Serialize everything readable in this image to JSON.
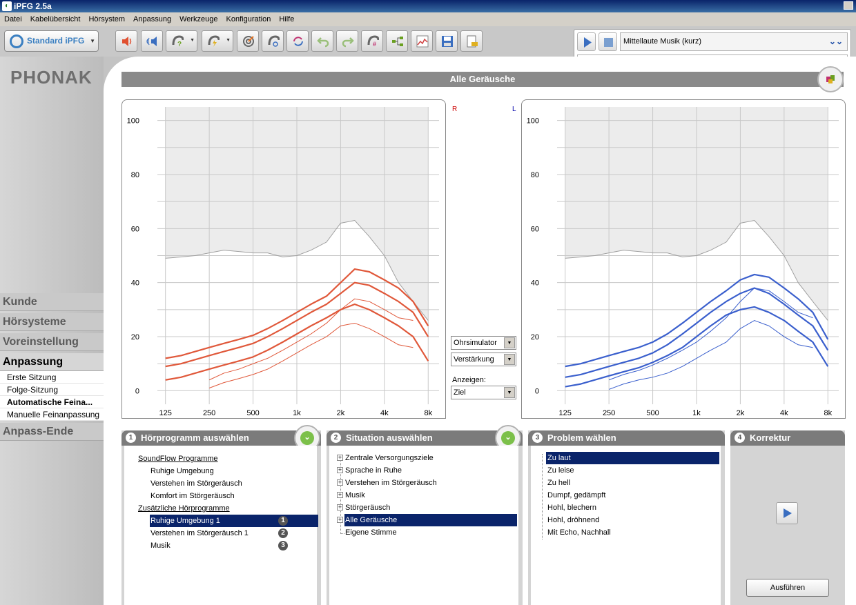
{
  "window": {
    "title": "iPFG 2.5a"
  },
  "menu": [
    "Datei",
    "Kabelübersicht",
    "Hörsystem",
    "Anpassung",
    "Werkzeuge",
    "Konfiguration",
    "Hilfe"
  ],
  "toolbar": {
    "profile_label": "Standard iPFG",
    "buttons": [
      "speaker-icon",
      "feedback-icon",
      "question-ear-icon",
      "lightning-ear-icon",
      "target-icon",
      "ear-refresh-icon",
      "cycle-icon",
      "undo-icon",
      "redo-icon",
      "ear-grid-icon",
      "tree-icon",
      "graph-icon",
      "save-icon",
      "device-icon"
    ]
  },
  "player": {
    "track": "Mittellaute Musik (kurz)"
  },
  "brand": {
    "logo": "PHONAK"
  },
  "nav": {
    "tabs": [
      "Kunde",
      "Hörsysteme",
      "Voreinstellung",
      "Anpassung",
      "Anpass-Ende"
    ],
    "subitems": [
      "Erste Sitzung",
      "Folge-Sitzung",
      "Automatische Feina...",
      "Manuelle Feinanpassung"
    ]
  },
  "section": {
    "title": "Alle Geräusche"
  },
  "charts": {
    "right_label": "R",
    "left_label": "L",
    "y_ticks": [
      "100",
      "80",
      "60",
      "40",
      "20",
      "0"
    ],
    "x_ticks": [
      "125",
      "250",
      "500",
      "1k",
      "2k",
      "4k",
      "8k"
    ]
  },
  "chart_data": [
    {
      "type": "line",
      "ear": "R",
      "color": "#e0583a",
      "x": [
        125,
        160,
        200,
        250,
        315,
        400,
        500,
        630,
        800,
        1000,
        1250,
        1600,
        2000,
        2500,
        3150,
        4000,
        5000,
        6300,
        8000
      ],
      "ylim": [
        -5,
        105
      ],
      "series": [
        {
          "values": [
            12,
            13,
            14.5,
            16,
            17.5,
            19,
            20.5,
            23,
            26,
            29,
            32,
            35,
            40,
            45,
            44,
            41,
            38,
            33,
            24
          ]
        },
        {
          "values": [
            9,
            10,
            11.5,
            13,
            14.5,
            16,
            17.5,
            20,
            23,
            26,
            29,
            32,
            36,
            40,
            39,
            36,
            33,
            29,
            20
          ]
        },
        {
          "values": [
            4,
            5,
            6.5,
            8,
            9.5,
            11,
            12.5,
            15,
            18,
            21,
            24,
            27,
            30,
            32,
            30,
            27,
            24,
            20,
            11
          ]
        },
        {
          "x": [
            250,
            315,
            400,
            500,
            630,
            800,
            1000,
            1250,
            1600,
            2000,
            2500,
            3150,
            4000,
            5000,
            6300
          ],
          "values": [
            4,
            6.5,
            8,
            10,
            12,
            15,
            18,
            21,
            25,
            30,
            34,
            33,
            30,
            27,
            26
          ]
        },
        {
          "x": [
            250,
            315,
            400,
            500,
            630,
            800,
            1000,
            1250,
            1600,
            2000,
            2500,
            3150,
            4000,
            5000,
            6300
          ],
          "values": [
            1,
            3,
            4.5,
            6,
            8,
            11,
            14,
            17,
            20,
            24,
            25,
            23,
            20,
            17,
            16
          ]
        }
      ]
    },
    {
      "type": "line",
      "ear": "L",
      "color": "#3a5fcd",
      "x": [
        125,
        160,
        200,
        250,
        315,
        400,
        500,
        630,
        800,
        1000,
        1250,
        1600,
        2000,
        2500,
        3150,
        4000,
        5000,
        6300,
        8000
      ],
      "ylim": [
        -5,
        105
      ],
      "series": [
        {
          "values": [
            9,
            10,
            11.5,
            13,
            14.5,
            16,
            18,
            21,
            25,
            29,
            33,
            37,
            41,
            43,
            42,
            38,
            34,
            29,
            19
          ]
        },
        {
          "values": [
            5,
            6,
            7.5,
            9,
            10.5,
            12,
            14,
            17,
            21,
            25,
            29,
            33,
            36,
            38,
            36,
            32,
            28,
            24,
            15
          ]
        },
        {
          "values": [
            1.5,
            2.5,
            4,
            5.5,
            7,
            8.5,
            10.5,
            13,
            16,
            20,
            24,
            28,
            30,
            31,
            29,
            26,
            22,
            18,
            9
          ]
        },
        {
          "x": [
            250,
            315,
            400,
            500,
            630,
            800,
            1000,
            1250,
            1600,
            2000,
            2500,
            3150,
            4000,
            5000,
            6300
          ],
          "values": [
            4,
            6,
            7.5,
            9.5,
            12,
            15,
            18,
            22,
            27,
            33,
            38,
            37,
            33,
            29,
            27
          ]
        },
        {
          "x": [
            250,
            315,
            400,
            500,
            630,
            800,
            1000,
            1250,
            1600,
            2000,
            2500,
            3150,
            4000,
            5000,
            6300
          ],
          "values": [
            0.5,
            2.5,
            4,
            5,
            6.5,
            9,
            12,
            15,
            18,
            23,
            26,
            24,
            20,
            17,
            16
          ]
        }
      ]
    }
  ],
  "limits": {
    "x": [
      125,
      160,
      200,
      250,
      315,
      400,
      500,
      630,
      800,
      1000,
      1250,
      1600,
      2000,
      2500,
      3150,
      4000,
      5000,
      6300,
      8000
    ],
    "values": [
      49,
      49.5,
      50,
      51,
      52,
      51.5,
      51,
      51,
      49.5,
      50,
      52,
      55,
      62,
      63,
      57,
      50,
      40,
      33,
      26
    ]
  },
  "middle": {
    "dropdowns": [
      "Ohrsimulator",
      "Verstärkung"
    ],
    "show_label": "Anzeigen:",
    "show_value": "Ziel"
  },
  "panels": {
    "p1": {
      "num": "1",
      "title": "Hörprogramm auswählen",
      "items": [
        {
          "text": "SoundFlow Programme",
          "head": true
        },
        {
          "text": "Ruhige Umgebung"
        },
        {
          "text": "Verstehen im Störgeräusch"
        },
        {
          "text": "Komfort im Störgeräusch"
        },
        {
          "text": "Zusätzliche Hörprogramme",
          "head": true
        },
        {
          "text": "Ruhige Umgebung 1",
          "badge": "1",
          "selected": true
        },
        {
          "text": "Verstehen im Störgeräusch 1",
          "badge": "2"
        },
        {
          "text": "Musik",
          "badge": "3"
        }
      ]
    },
    "p2": {
      "num": "2",
      "title": "Situation auswählen",
      "items": [
        {
          "text": "Zentrale Versorgungsziele",
          "expand": true
        },
        {
          "text": "Sprache in Ruhe",
          "expand": true
        },
        {
          "text": "Verstehen im Störgeräusch",
          "expand": true
        },
        {
          "text": "Musik",
          "expand": true
        },
        {
          "text": "Störgeräusch",
          "expand": true
        },
        {
          "text": "Alle Geräusche",
          "expand": true,
          "selected": true
        },
        {
          "text": "Eigene Stimme"
        }
      ]
    },
    "p3": {
      "num": "3",
      "title": "Problem wählen",
      "items": [
        {
          "text": "Zu laut",
          "selected": true
        },
        {
          "text": "Zu leise"
        },
        {
          "text": "Zu hell"
        },
        {
          "text": "Dumpf, gedämpft"
        },
        {
          "text": "Hohl, blechern"
        },
        {
          "text": "Hohl, dröhnend"
        },
        {
          "text": "Mit Echo, Nachhall"
        }
      ]
    },
    "p4": {
      "num": "4",
      "title": "Korrektur",
      "execute_label": "Ausführen"
    }
  }
}
